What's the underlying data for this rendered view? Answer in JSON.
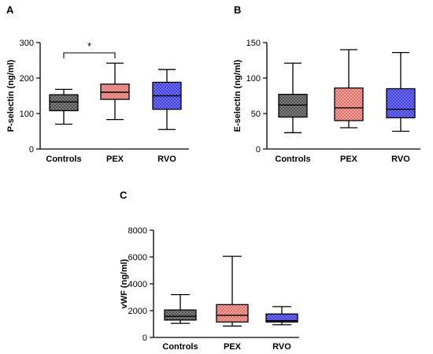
{
  "chart_data": [
    {
      "type": "box",
      "panel_label": "A",
      "ylabel": "P-selectin (ng/ml)",
      "ylim": [
        0,
        300
      ],
      "yticks": [
        0,
        100,
        200,
        300
      ],
      "categories": [
        "Controls",
        "PEX",
        "RVO"
      ],
      "boxes": [
        {
          "min": 70,
          "q1": 108,
          "median": 133,
          "q3": 153,
          "max": 168
        },
        {
          "min": 83,
          "q1": 140,
          "median": 160,
          "q3": 183,
          "max": 242
        },
        {
          "min": 55,
          "q1": 112,
          "median": 150,
          "q3": 188,
          "max": 224
        }
      ],
      "colors": [
        "#9a9a9a",
        "#f4a09a",
        "#6f6ff2"
      ],
      "significance": {
        "from": 0,
        "to": 1,
        "label": "*"
      }
    },
    {
      "type": "box",
      "panel_label": "B",
      "ylabel": "E-selectin (ng/ml)",
      "ylim": [
        0,
        150
      ],
      "yticks": [
        0,
        50,
        100,
        150
      ],
      "categories": [
        "Controls",
        "PEX",
        "RVO"
      ],
      "boxes": [
        {
          "min": 23,
          "q1": 45,
          "median": 62,
          "q3": 77,
          "max": 121
        },
        {
          "min": 30,
          "q1": 40,
          "median": 58,
          "q3": 86,
          "max": 140
        },
        {
          "min": 25,
          "q1": 44,
          "median": 56,
          "q3": 85,
          "max": 136
        }
      ],
      "colors": [
        "#9a9a9a",
        "#f4a09a",
        "#6f6ff2"
      ]
    },
    {
      "type": "box",
      "panel_label": "C",
      "ylabel": "vWF (ng/ml)",
      "ylim": [
        0,
        8000
      ],
      "yticks": [
        0,
        2000,
        4000,
        6000,
        8000
      ],
      "categories": [
        "Controls",
        "PEX",
        "RVO"
      ],
      "boxes": [
        {
          "min": 1050,
          "q1": 1300,
          "median": 1580,
          "q3": 2050,
          "max": 3200
        },
        {
          "min": 850,
          "q1": 1150,
          "median": 1650,
          "q3": 2450,
          "max": 6050
        },
        {
          "min": 950,
          "q1": 1150,
          "median": 1250,
          "q3": 1750,
          "max": 2300
        }
      ],
      "colors": [
        "#9a9a9a",
        "#f4a09a",
        "#6f6ff2"
      ]
    }
  ]
}
